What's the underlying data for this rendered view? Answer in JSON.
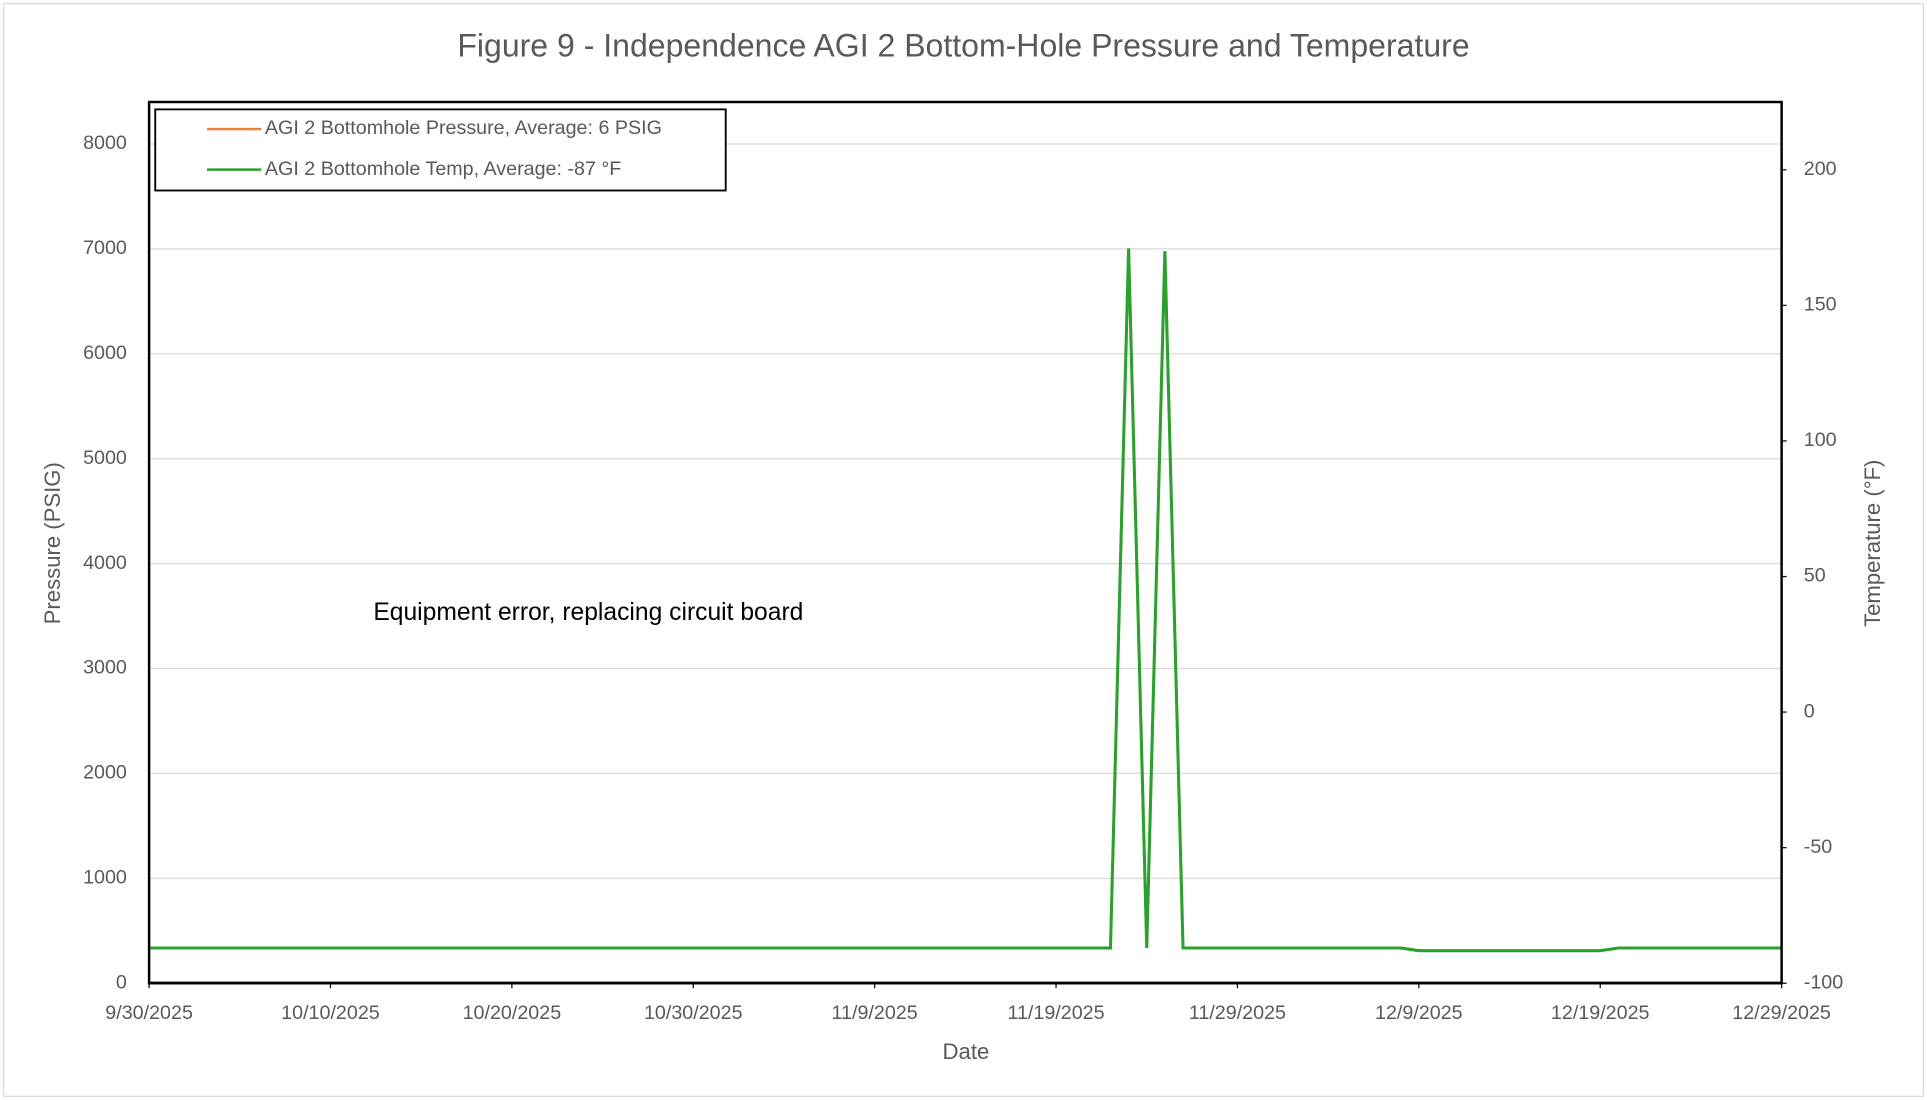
{
  "chart_data": {
    "type": "line",
    "title": "Figure 9 - Independence AGI 2 Bottom-Hole Pressure and Temperature",
    "xlabel": "Date",
    "ylabel": "Pressure (PSIG)",
    "y2label": "Temperature (°F)",
    "annotation": "Equipment error, replacing circuit board",
    "x": [
      "9/30/2025",
      "11/22/2025",
      "11/23/2025",
      "11/24/2025",
      "11/25/2025",
      "11/26/2025",
      "12/8/2025",
      "12/9/2025",
      "12/19/2025",
      "12/20/2025",
      "12/29/2025"
    ],
    "series": [
      {
        "name": "AGI 2 Bottomhole Pressure, Average: 6 PSIG",
        "color": "#ed7d31",
        "values": [
          6,
          6,
          6,
          6,
          6,
          6,
          6,
          6,
          6,
          6,
          6
        ]
      },
      {
        "name": "AGI 2 Bottomhole Temp, Average: -87 °F",
        "color": "#2ca02c",
        "axis": "y2",
        "values": [
          -87,
          -87,
          171,
          -87,
          170,
          -87,
          -87,
          -88,
          -88,
          -87,
          -87
        ]
      }
    ],
    "xlim": [
      "9/30/2025",
      "12/29/2025"
    ],
    "xticks": [
      "9/30/2025",
      "10/10/2025",
      "10/20/2025",
      "10/30/2025",
      "11/9/2025",
      "11/19/2025",
      "11/29/2025",
      "12/9/2025",
      "12/19/2025",
      "12/29/2025"
    ],
    "ylim": [
      0,
      8400
    ],
    "yticks": [
      0,
      1000,
      2000,
      3000,
      4000,
      5000,
      6000,
      7000,
      8000
    ],
    "y2lim": [
      -100,
      225
    ],
    "y2ticks": [
      -100,
      -50,
      0,
      50,
      100,
      150,
      200
    ],
    "grid": true,
    "legend": "upper left"
  }
}
